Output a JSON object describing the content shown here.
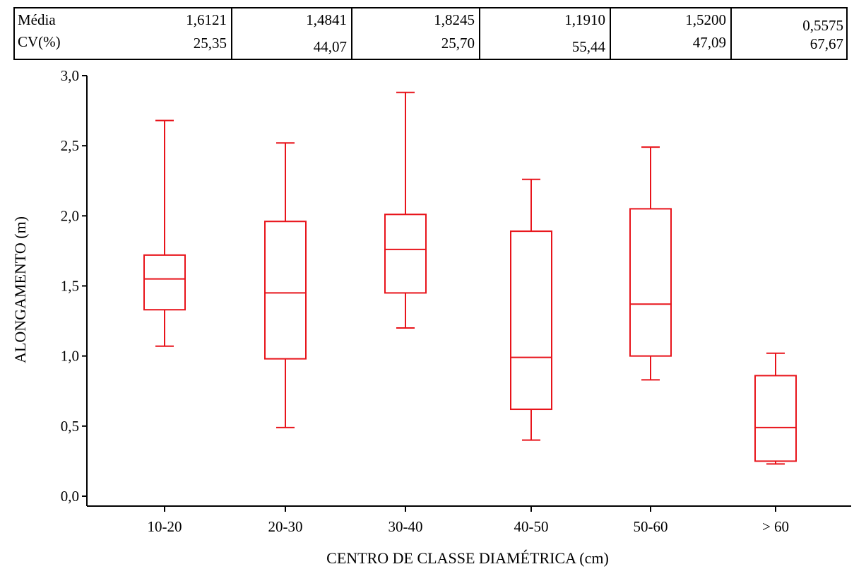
{
  "stats": {
    "row_labels": [
      "Média",
      "CV(%)"
    ],
    "columns": [
      {
        "mean": "1,6121",
        "cv": "25,35"
      },
      {
        "mean": "1,4841",
        "cv": "44,07"
      },
      {
        "mean": "1,8245",
        "cv": "25,70"
      },
      {
        "mean": "1,1910",
        "cv": "55,44"
      },
      {
        "mean": "1,5200",
        "cv": "47,09"
      },
      {
        "mean": "0,5575",
        "cv": "67,67"
      }
    ]
  },
  "chart_data": {
    "type": "box",
    "categories": [
      "10-20",
      "20-30",
      "30-40",
      "40-50",
      "50-60",
      "> 60"
    ],
    "boxes": [
      {
        "category": "10-20",
        "min": 1.07,
        "q1": 1.33,
        "median": 1.55,
        "q3": 1.72,
        "max": 2.68
      },
      {
        "category": "20-30",
        "min": 0.49,
        "q1": 0.98,
        "median": 1.45,
        "q3": 1.96,
        "max": 2.52
      },
      {
        "category": "30-40",
        "min": 1.2,
        "q1": 1.45,
        "median": 1.76,
        "q3": 2.01,
        "max": 2.88
      },
      {
        "category": "40-50",
        "min": 0.4,
        "q1": 0.62,
        "median": 0.99,
        "q3": 1.89,
        "max": 2.26
      },
      {
        "category": "50-60",
        "min": 0.83,
        "q1": 1.0,
        "median": 1.37,
        "q3": 2.05,
        "max": 2.49
      },
      {
        "category": "> 60",
        "min": 0.23,
        "q1": 0.25,
        "median": 0.49,
        "q3": 0.86,
        "max": 1.02
      }
    ],
    "xlabel": "CENTRO DE CLASSE DIAMÉTRICA  (cm)",
    "ylabel": "ALONGAMENTO (m)",
    "ylim": [
      0,
      3
    ],
    "yticks": [
      "0,0",
      "0,5",
      "1,0",
      "1,5",
      "2,0",
      "2,5",
      "3,0"
    ],
    "yticks_values": [
      0,
      0.5,
      1,
      1.5,
      2,
      2.5,
      3
    ],
    "color": "#e8141b",
    "grid": false
  }
}
